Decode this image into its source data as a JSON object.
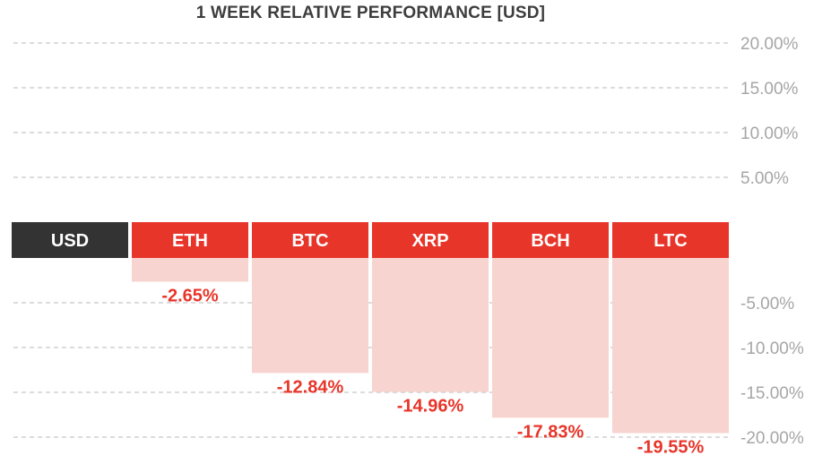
{
  "chart_data": {
    "type": "bar",
    "title": "1 WEEK RELATIVE PERFORMANCE  [USD]",
    "baseline_category": "USD",
    "categories": [
      "ETH",
      "BTC",
      "XRP",
      "BCH",
      "LTC"
    ],
    "values": [
      -2.65,
      -12.84,
      -14.96,
      -17.83,
      -19.55
    ],
    "value_labels": [
      "-2.65%",
      "-12.84%",
      "-14.96%",
      "-17.83%",
      "-19.55%"
    ],
    "ylim": [
      -20,
      20
    ],
    "yticks_positive": [
      "20.00%",
      "15.00%",
      "10.00%",
      "5.00%"
    ],
    "yticks_negative": [
      "-5.00%",
      "-10.00%",
      "-15.00%",
      "-20.00%"
    ],
    "grid": true,
    "colors": {
      "baseline_header": "#333333",
      "header": "#e8352a",
      "negative_bar": "#f7d4d0",
      "value_text": "#e8352a",
      "tick_text": "#a6a6a6",
      "grid": "#c8c8c8",
      "title_text": "#3d3d3d"
    }
  }
}
